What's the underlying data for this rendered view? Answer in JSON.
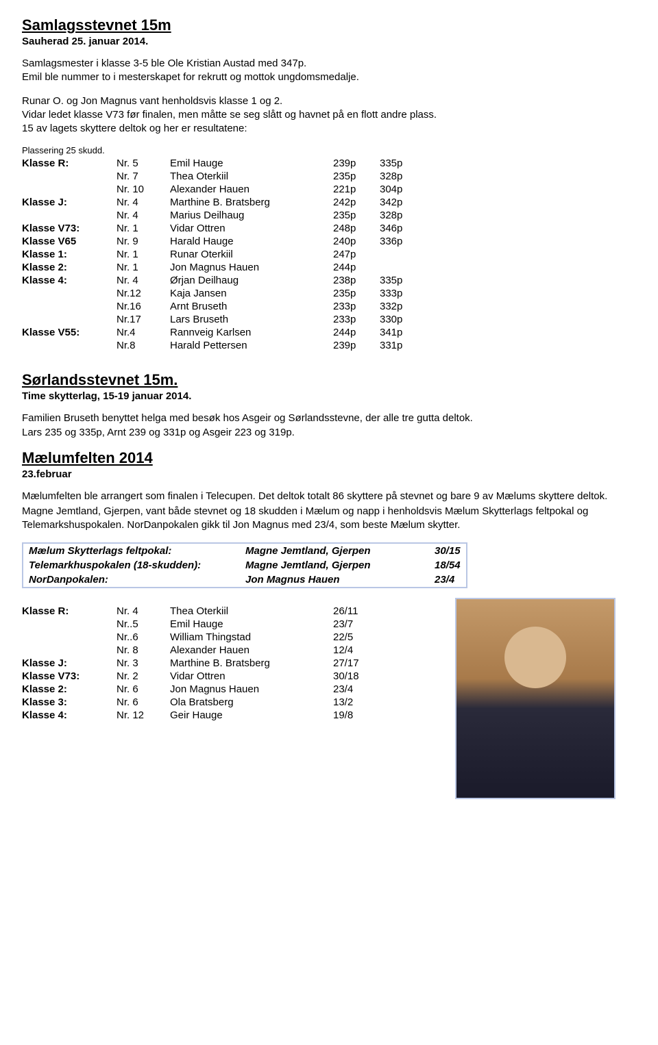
{
  "section1": {
    "title": "Samlagsstevnet 15m",
    "subtitle": "Sauherad 25. januar 2014.",
    "para1": "Samlagsmester i klasse 3-5 ble Ole Kristian Austad med 347p.\nEmil ble nummer to i mesterskapet for rekrutt og mottok ungdomsmedalje.",
    "para2": "Runar O. og Jon Magnus vant henholdsvis klasse 1 og 2.\nVidar ledet klasse V73 før finalen, men måtte se seg slått og havnet på en flott andre plass.\n15 av lagets skyttere deltok og her er resultatene:",
    "note": "Plassering 25 skudd.",
    "rows": [
      {
        "klasse": "Klasse R:",
        "nr": "Nr. 5",
        "name": "Emil Hauge",
        "s1": "239p",
        "s2": "335p"
      },
      {
        "klasse": "",
        "nr": "Nr. 7",
        "name": "Thea Oterkiil",
        "s1": "235p",
        "s2": "328p"
      },
      {
        "klasse": "",
        "nr": "Nr. 10",
        "name": "Alexander Hauen",
        "s1": "221p",
        "s2": "304p"
      },
      {
        "klasse": "Klasse J:",
        "nr": "Nr. 4",
        "name": "Marthine B. Bratsberg",
        "s1": "242p",
        "s2": "342p"
      },
      {
        "klasse": "",
        "nr": "Nr. 4",
        "name": "Marius Deilhaug",
        "s1": "235p",
        "s2": "328p"
      },
      {
        "klasse": "Klasse V73:",
        "nr": "Nr. 1",
        "name": "Vidar Ottren",
        "s1": "248p",
        "s2": "346p"
      },
      {
        "klasse": "Klasse V65",
        "nr": "Nr. 9",
        "name": "Harald Hauge",
        "s1": "240p",
        "s2": "336p"
      },
      {
        "klasse": "Klasse 1:",
        "nr": "Nr. 1",
        "name": "Runar Oterkiil",
        "s1": "247p",
        "s2": ""
      },
      {
        "klasse": "Klasse 2:",
        "nr": "Nr. 1",
        "name": "Jon Magnus Hauen",
        "s1": "244p",
        "s2": ""
      },
      {
        "klasse": "Klasse 4:",
        "nr": "Nr. 4",
        "name": "Ørjan Deilhaug",
        "s1": "238p",
        "s2": "335p"
      },
      {
        "klasse": "",
        "nr": "Nr.12",
        "name": "Kaja Jansen",
        "s1": "235p",
        "s2": "333p"
      },
      {
        "klasse": "",
        "nr": "Nr.16",
        "name": "Arnt Bruseth",
        "s1": "233p",
        "s2": "332p"
      },
      {
        "klasse": "",
        "nr": "Nr.17",
        "name": "Lars Bruseth",
        "s1": "233p",
        "s2": "330p"
      },
      {
        "klasse": "Klasse V55:",
        "nr": "Nr.4",
        "name": "Rannveig Karlsen",
        "s1": "244p",
        "s2": "341p"
      },
      {
        "klasse": "",
        "nr": "Nr.8",
        "name": "Harald Pettersen",
        "s1": "239p",
        "s2": "331p"
      }
    ]
  },
  "section2": {
    "title": "Sørlandsstevnet 15m.",
    "subtitle": "Time skytterlag, 15-19 januar 2014.",
    "para": "Familien Bruseth benyttet helga med besøk hos Asgeir og Sørlandsstevne, der alle tre gutta deltok.\nLars 235 og 335p, Arnt 239 og 331p og Asgeir 223 og 319p."
  },
  "section3": {
    "title": "Mælumfelten  2014",
    "subtitle": "23.februar",
    "para1": "Mælumfelten ble arrangert som finalen i Telecupen. Det deltok totalt 86 skyttere på stevnet og bare 9 av Mælums skyttere deltok.",
    "para2": "Magne Jemtland, Gjerpen, vant både stevnet og 18 skudden i Mælum og napp i henholdsvis Mælum Skytterlags feltpokal og Telemarkshuspokalen. NorDanpokalen gikk til Jon Magnus med 23/4, som beste Mælum skytter.",
    "awards": [
      {
        "label": "Mælum Skytterlags feltpokal:",
        "winner": "Magne Jemtland, Gjerpen",
        "score": "30/15"
      },
      {
        "label": "Telemarkhuspokalen (18-skudden):",
        "winner": "Magne Jemtland, Gjerpen",
        "score": "18/54"
      },
      {
        "label": "NorDanpokalen:",
        "winner": "Jon Magnus Hauen",
        "score": "23/4"
      }
    ],
    "rows": [
      {
        "klasse": "Klasse R:",
        "nr": "Nr. 4",
        "name": "Thea Oterkiil",
        "s1": "26/11"
      },
      {
        "klasse": "",
        "nr": "Nr..5",
        "name": "Emil Hauge",
        "s1": "23/7"
      },
      {
        "klasse": "",
        "nr": "Nr..6",
        "name": "William Thingstad",
        "s1": "22/5"
      },
      {
        "klasse": "",
        "nr": "Nr. 8",
        "name": "Alexander Hauen",
        "s1": "12/4"
      },
      {
        "klasse": "Klasse J:",
        "nr": "Nr. 3",
        "name": "Marthine B. Bratsberg",
        "s1": "27/17"
      },
      {
        "klasse": "Klasse V73:",
        "nr": "Nr. 2",
        "name": "Vidar Ottren",
        "s1": "30/18"
      },
      {
        "klasse": "Klasse 2:",
        "nr": "Nr. 6",
        "name": "Jon Magnus Hauen",
        "s1": "23/4"
      },
      {
        "klasse": "Klasse 3:",
        "nr": "Nr. 6",
        "name": "Ola Bratsberg",
        "s1": "13/2"
      },
      {
        "klasse": "Klasse 4:",
        "nr": "Nr. 12",
        "name": "Geir Hauge",
        "s1": "19/8"
      }
    ]
  }
}
